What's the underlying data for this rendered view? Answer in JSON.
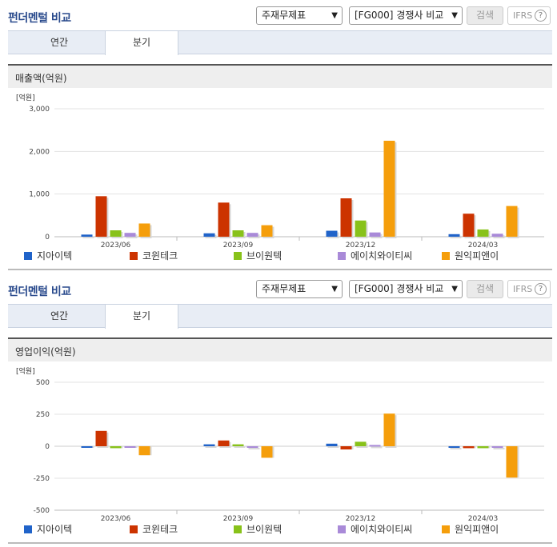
{
  "header": {
    "title": "펀더멘털 비교",
    "select1": "주재무제표",
    "select2": "[FG000] 경쟁사 비교",
    "search_label": "검색",
    "ifrs_label": "IFRS",
    "help_glyph": "?"
  },
  "tabs": [
    "연간",
    "분기"
  ],
  "legend": [
    {
      "name": "지아이텍",
      "color": "#2063c9"
    },
    {
      "name": "코윈테크",
      "color": "#cc3300"
    },
    {
      "name": "브이원텍",
      "color": "#88c21a"
    },
    {
      "name": "에이치와이티씨",
      "color": "#a98ad8"
    },
    {
      "name": "원익피앤이",
      "color": "#f59e0b"
    }
  ],
  "panels": [
    {
      "section": "매출액(억원)",
      "chart_data": {
        "type": "bar",
        "unit": "[억원]",
        "categories": [
          "2023/06",
          "2023/09",
          "2023/12",
          "2024/03"
        ],
        "ylim": [
          0,
          3000
        ],
        "yticks": [
          "3,000",
          "2,000",
          "1,000",
          "0"
        ],
        "ytick_values": [
          3000,
          2000,
          1000,
          0
        ],
        "series": [
          {
            "name": "지아이텍",
            "values": [
              50,
              80,
              140,
              60
            ]
          },
          {
            "name": "코윈테크",
            "values": [
              950,
              800,
              900,
              540
            ]
          },
          {
            "name": "브이원텍",
            "values": [
              150,
              150,
              380,
              170
            ]
          },
          {
            "name": "에이치와이티씨",
            "values": [
              90,
              90,
              100,
              70
            ]
          },
          {
            "name": "원익피앤이",
            "values": [
              310,
              270,
              2250,
              720
            ]
          }
        ]
      }
    },
    {
      "section": "영업이익(억원)",
      "chart_data": {
        "type": "bar",
        "unit": "[억원]",
        "categories": [
          "2023/06",
          "2023/09",
          "2023/12",
          "2024/03"
        ],
        "ylim": [
          -500,
          500
        ],
        "yticks": [
          "500",
          "250",
          "0",
          "-250",
          "-500"
        ],
        "ytick_values": [
          500,
          250,
          0,
          -250,
          -500
        ],
        "series": [
          {
            "name": "지아이텍",
            "values": [
              -10,
              15,
              20,
              0
            ]
          },
          {
            "name": "코윈테크",
            "values": [
              120,
              45,
              -25,
              -15
            ]
          },
          {
            "name": "브이원텍",
            "values": [
              -15,
              15,
              35,
              -15
            ]
          },
          {
            "name": "에이치와이티씨",
            "values": [
              -10,
              0,
              10,
              0
            ]
          },
          {
            "name": "원익피앤이",
            "values": [
              -70,
              -90,
              255,
              -245
            ]
          }
        ]
      }
    }
  ]
}
